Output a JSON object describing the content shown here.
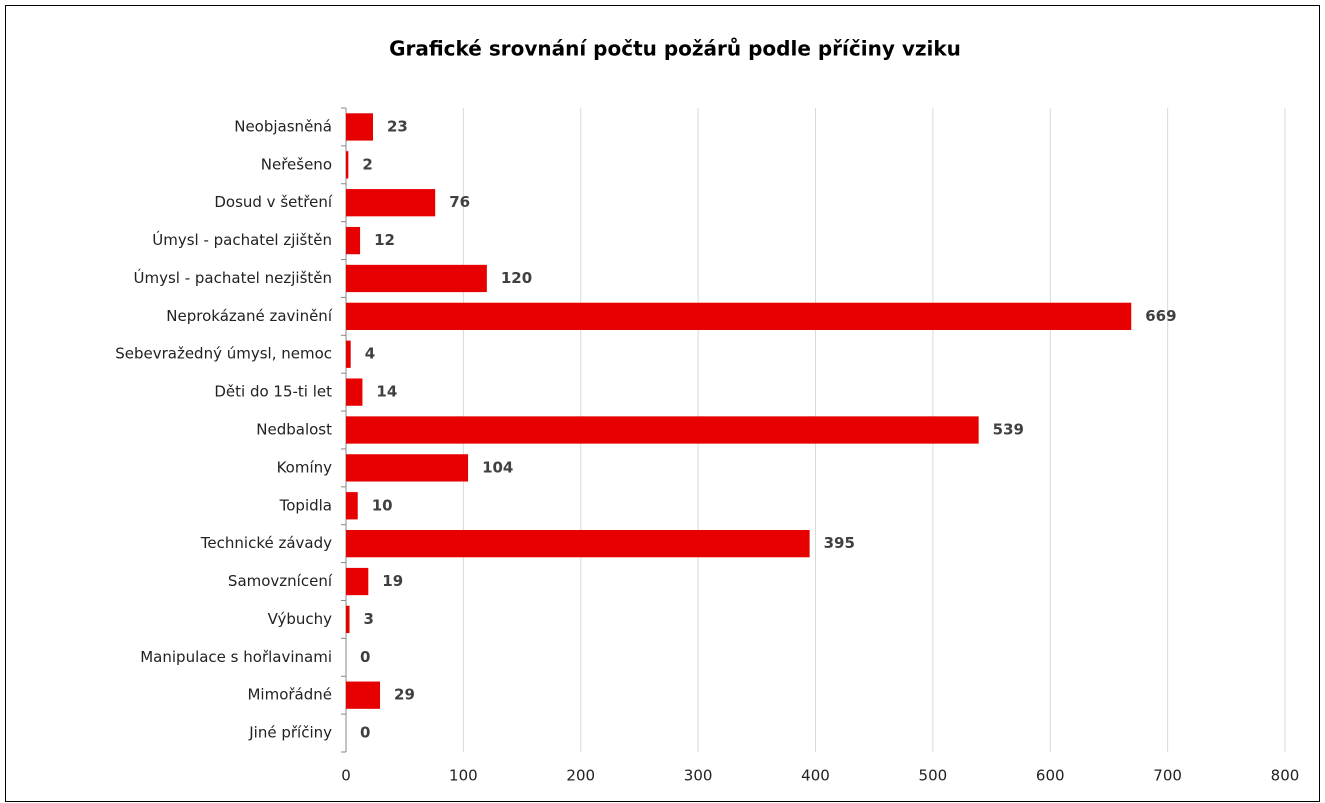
{
  "chart_data": {
    "type": "bar",
    "orientation": "horizontal",
    "title": "Grafické srovnání počtu požárů podle příčiny vziku",
    "categories": [
      "Neobjasněná",
      "Neřešeno",
      "Dosud v šetření",
      "Úmysl - pachatel zjištěn",
      "Úmysl - pachatel nezjištěn",
      "Neprokázané zavinění",
      "Sebevražedný úmysl, nemoc",
      "Děti do 15-ti let",
      "Nedbalost",
      "Komíny",
      "Topidla",
      "Technické závady",
      "Samovznícení",
      "Výbuchy",
      "Manipulace s hořlavinami",
      "Mimořádné",
      "Jiné příčiny"
    ],
    "values": [
      23,
      2,
      76,
      12,
      120,
      669,
      4,
      14,
      539,
      104,
      10,
      395,
      19,
      3,
      0,
      29,
      0
    ],
    "color": "#e60000",
    "xlim": [
      0,
      800
    ],
    "xticks": [
      0,
      100,
      200,
      300,
      400,
      500,
      600,
      700,
      800
    ],
    "grid": true
  }
}
